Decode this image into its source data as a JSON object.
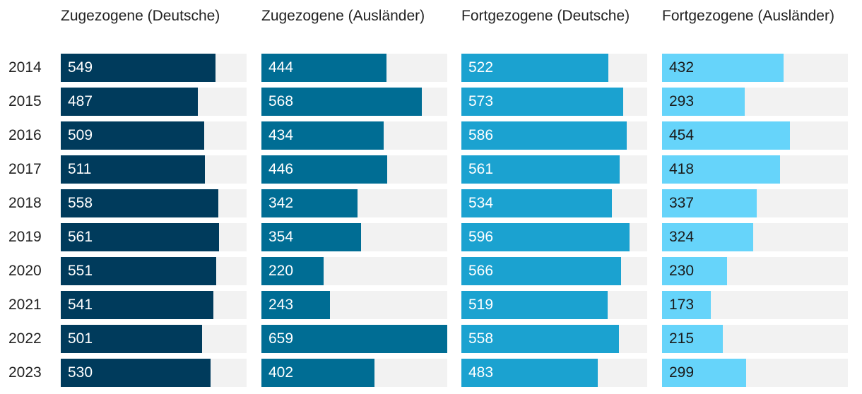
{
  "chart_data": {
    "type": "bar",
    "orientation": "horizontal",
    "layout": "small-multiples",
    "categories": [
      "2014",
      "2015",
      "2016",
      "2017",
      "2018",
      "2019",
      "2020",
      "2021",
      "2022",
      "2023"
    ],
    "xlim": [
      0,
      659
    ],
    "series": [
      {
        "name": "Zugezogene (Deutsche)",
        "color": "#003b5c",
        "label_color": "#ffffff",
        "values": [
          549,
          487,
          509,
          511,
          558,
          561,
          551,
          541,
          501,
          530
        ]
      },
      {
        "name": "Zugezogene (Ausländer)",
        "color": "#006d94",
        "label_color": "#ffffff",
        "values": [
          444,
          568,
          434,
          446,
          342,
          354,
          220,
          243,
          659,
          402
        ]
      },
      {
        "name": "Fortgezogene (Deutsche)",
        "color": "#1ba2d0",
        "label_color": "#ffffff",
        "values": [
          522,
          573,
          586,
          561,
          534,
          596,
          566,
          519,
          558,
          483
        ]
      },
      {
        "name": "Fortgezogene (Ausländer)",
        "color": "#66d4fa",
        "label_color": "#1a1a1a",
        "values": [
          432,
          293,
          454,
          418,
          337,
          324,
          230,
          173,
          215,
          299
        ]
      }
    ],
    "track_color": "#f2f2f2"
  }
}
